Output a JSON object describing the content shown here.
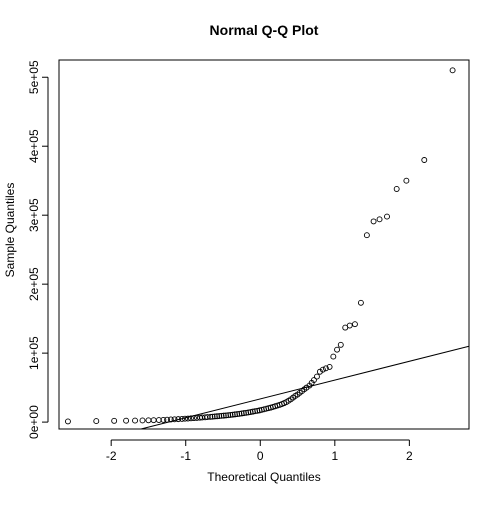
{
  "chart_data": {
    "type": "scatter",
    "title": "Normal Q-Q Plot",
    "xlabel": "Theoretical Quantiles",
    "ylabel": "Sample Quantiles",
    "xlim": [
      -2.7,
      2.8
    ],
    "ylim": [
      -10000,
      525000
    ],
    "x_ticks": [
      -2,
      -1,
      0,
      1,
      2
    ],
    "x_tick_labels": [
      "-2",
      "-1",
      "0",
      "1",
      "2"
    ],
    "y_ticks": [
      0,
      100000,
      200000,
      300000,
      400000,
      500000
    ],
    "y_tick_labels": [
      "0e+00",
      "1e+05",
      "2e+05",
      "3e+05",
      "4e+05",
      "5e+05"
    ],
    "grid": false,
    "qq_line": {
      "x": [
        -1.6,
        2.8
      ],
      "y": [
        -10000,
        110000
      ]
    },
    "points": [
      [
        -2.58,
        1000
      ],
      [
        -2.2,
        1500
      ],
      [
        -1.96,
        1800
      ],
      [
        -1.8,
        2000
      ],
      [
        -1.68,
        2200
      ],
      [
        -1.58,
        2400
      ],
      [
        -1.5,
        2600
      ],
      [
        -1.43,
        2800
      ],
      [
        -1.36,
        3000
      ],
      [
        -1.3,
        3200
      ],
      [
        -1.25,
        3500
      ],
      [
        -1.2,
        3800
      ],
      [
        -1.15,
        4000
      ],
      [
        -1.1,
        4300
      ],
      [
        -1.05,
        4600
      ],
      [
        -1.01,
        4900
      ],
      [
        -0.97,
        5200
      ],
      [
        -0.93,
        5500
      ],
      [
        -0.89,
        5800
      ],
      [
        -0.85,
        6100
      ],
      [
        -0.81,
        6400
      ],
      [
        -0.78,
        6700
      ],
      [
        -0.74,
        7000
      ],
      [
        -0.71,
        7300
      ],
      [
        -0.67,
        7600
      ],
      [
        -0.64,
        7900
      ],
      [
        -0.61,
        8200
      ],
      [
        -0.58,
        8500
      ],
      [
        -0.55,
        8800
      ],
      [
        -0.52,
        9100
      ],
      [
        -0.49,
        9400
      ],
      [
        -0.46,
        9700
      ],
      [
        -0.43,
        10000
      ],
      [
        -0.4,
        10400
      ],
      [
        -0.37,
        10800
      ],
      [
        -0.34,
        11200
      ],
      [
        -0.31,
        11600
      ],
      [
        -0.28,
        12000
      ],
      [
        -0.25,
        12500
      ],
      [
        -0.22,
        13000
      ],
      [
        -0.19,
        13500
      ],
      [
        -0.16,
        14000
      ],
      [
        -0.13,
        14600
      ],
      [
        -0.1,
        15200
      ],
      [
        -0.07,
        15800
      ],
      [
        -0.04,
        16400
      ],
      [
        -0.01,
        17000
      ],
      [
        0.02,
        17800
      ],
      [
        0.05,
        18600
      ],
      [
        0.08,
        19400
      ],
      [
        0.11,
        20200
      ],
      [
        0.14,
        21000
      ],
      [
        0.17,
        22000
      ],
      [
        0.2,
        23000
      ],
      [
        0.23,
        24000
      ],
      [
        0.26,
        25000
      ],
      [
        0.29,
        26200
      ],
      [
        0.32,
        27500
      ],
      [
        0.35,
        29000
      ],
      [
        0.38,
        31000
      ],
      [
        0.41,
        33000
      ],
      [
        0.44,
        35500
      ],
      [
        0.47,
        38000
      ],
      [
        0.5,
        40000
      ],
      [
        0.53,
        42500
      ],
      [
        0.56,
        45000
      ],
      [
        0.59,
        47500
      ],
      [
        0.62,
        50000
      ],
      [
        0.66,
        53000
      ],
      [
        0.69,
        57000
      ],
      [
        0.72,
        61000
      ],
      [
        0.76,
        66000
      ],
      [
        0.8,
        73000
      ],
      [
        0.84,
        76000
      ],
      [
        0.88,
        78000
      ],
      [
        0.93,
        80000
      ],
      [
        0.98,
        95000
      ],
      [
        1.03,
        105000
      ],
      [
        1.08,
        112000
      ],
      [
        1.14,
        137000
      ],
      [
        1.2,
        140000
      ],
      [
        1.27,
        142000
      ],
      [
        1.35,
        173000
      ],
      [
        1.43,
        271000
      ],
      [
        1.52,
        291000
      ],
      [
        1.6,
        294000
      ],
      [
        1.7,
        298000
      ],
      [
        1.83,
        338000
      ],
      [
        1.96,
        350000
      ],
      [
        2.2,
        380000
      ],
      [
        2.58,
        510000
      ]
    ]
  }
}
